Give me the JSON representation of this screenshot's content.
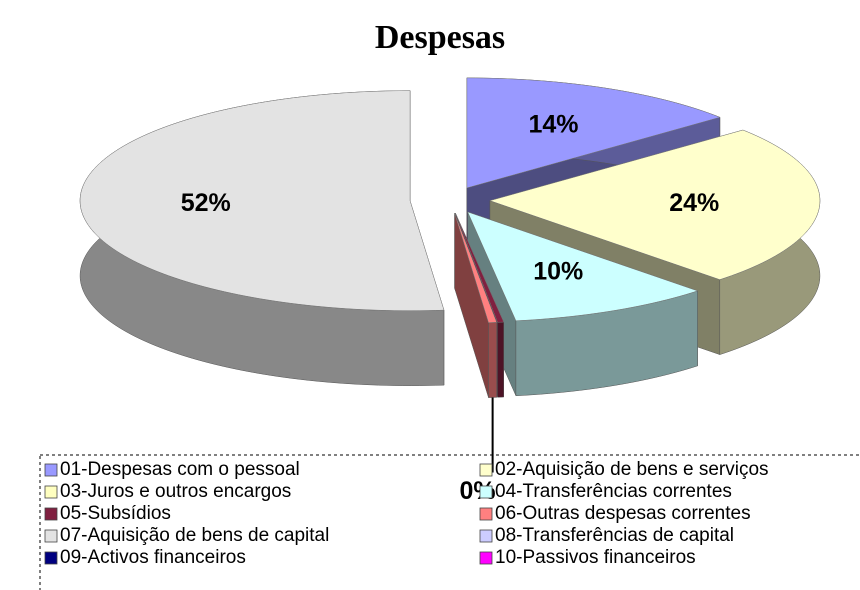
{
  "chart_data": {
    "type": "pie3d",
    "title": "Despesas",
    "categories": [
      "01-Despesas com o pessoal",
      "02-Aquisição de bens e serviços",
      "03-Juros e outros encargos",
      "04-Transferências correntes",
      "05-Subsídios",
      "06-Outras despesas correntes",
      "07-Aquisição de bens de capital",
      "08-Transferências de capital",
      "09-Activos financeiros",
      "10-Passivos financeiros"
    ],
    "values": [
      14,
      24,
      0,
      10,
      0.3,
      0.4,
      52,
      0,
      0,
      0
    ],
    "value_labels": [
      "14%",
      "24%",
      null,
      "10%",
      null,
      "0%",
      "52%",
      null,
      null,
      null
    ],
    "colors": [
      "#9999ff",
      "#ffffcc",
      "#ffffc0",
      "#ccffff",
      "#802040",
      "#ff8080",
      "#e3e3e3",
      "#ccccff",
      "#000080",
      "#ff00ff"
    ],
    "legend": "bottom"
  }
}
